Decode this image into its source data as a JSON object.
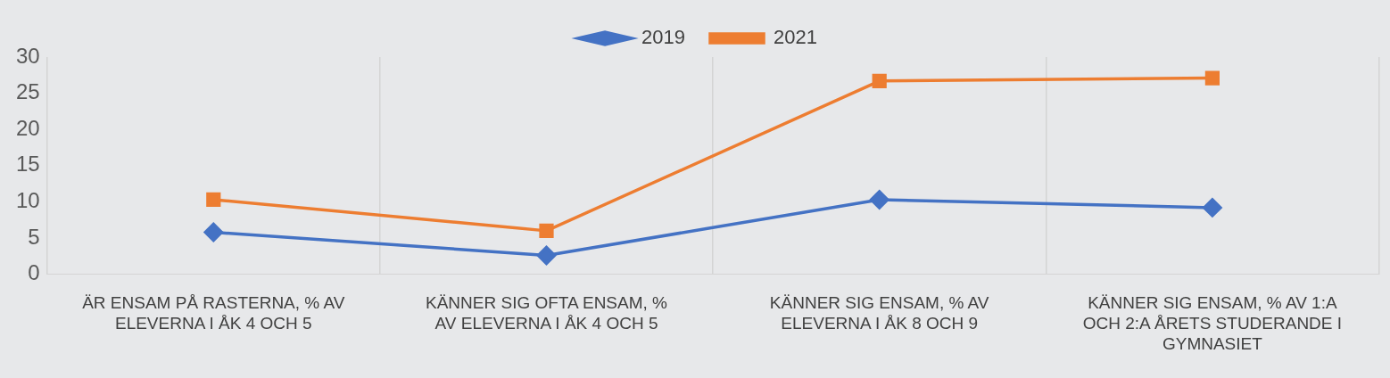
{
  "chart_data": {
    "type": "line",
    "categories": [
      "ÄR ENSAM PÅ RASTERNA, % AV ELEVERNA I ÅK 4 OCH 5",
      "KÄNNER SIG OFTA ENSAM, % AV ELEVERNA I ÅK 4 OCH 5",
      "KÄNNER SIG ENSAM, % AV ELEVERNA I ÅK 8 OCH 9",
      "KÄNNER SIG ENSAM, % AV 1:A OCH 2:A ÅRETS STUDERANDE I GYMNASIET"
    ],
    "series": [
      {
        "name": "2019",
        "color": "#4472c4",
        "marker": "diamond",
        "values": [
          5.8,
          2.6,
          10.3,
          9.2
        ]
      },
      {
        "name": "2021",
        "color": "#ed7d31",
        "marker": "square",
        "values": [
          10.3,
          6.0,
          26.7,
          27.1
        ]
      }
    ],
    "ylim": [
      0,
      30
    ],
    "yticks": [
      0,
      5,
      10,
      15,
      20,
      25,
      30
    ],
    "grid": "x",
    "legend": "top",
    "line_style": "solid"
  }
}
